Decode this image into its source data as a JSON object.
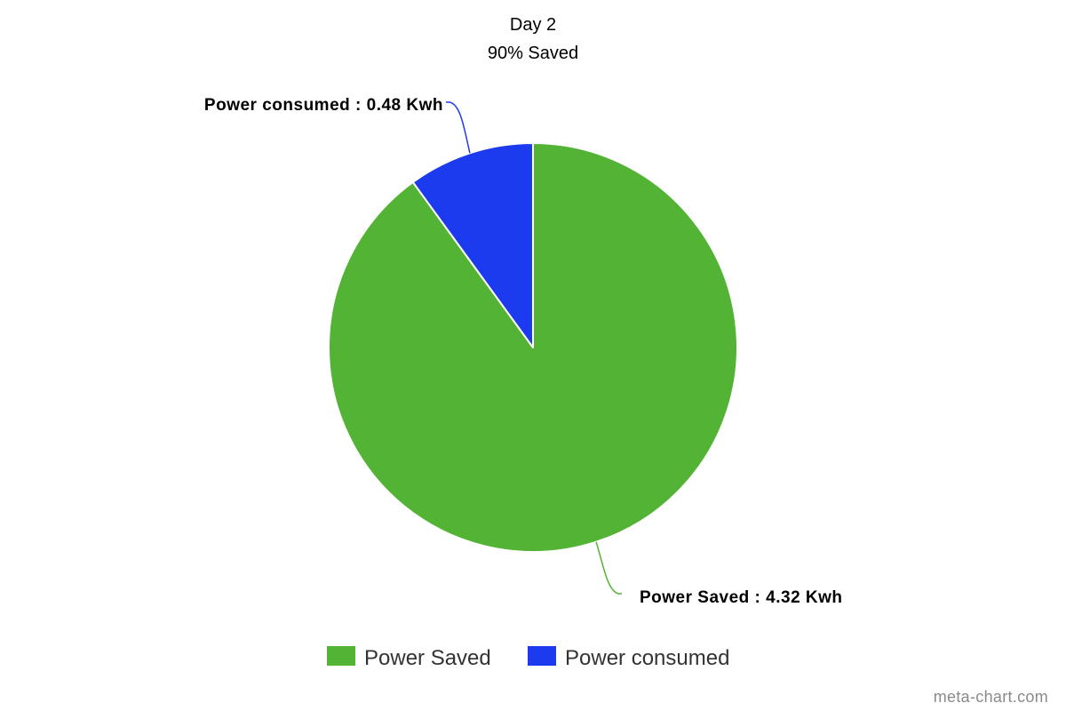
{
  "chart_data": {
    "type": "pie",
    "title": "Day 2",
    "subtitle": "90% Saved",
    "categories": [
      "Power Saved",
      "Power consumed"
    ],
    "values": [
      4.32,
      0.48
    ],
    "unit": "Kwh",
    "colors": [
      "#52b335",
      "#1c3bef"
    ],
    "labels": [
      "Power Saved : 4.32 Kwh",
      "Power consumed : 0.48 Kwh"
    ],
    "legend": {
      "position": "bottom",
      "items": [
        "Power Saved",
        "Power consumed"
      ]
    }
  },
  "watermark": "meta-chart.com"
}
